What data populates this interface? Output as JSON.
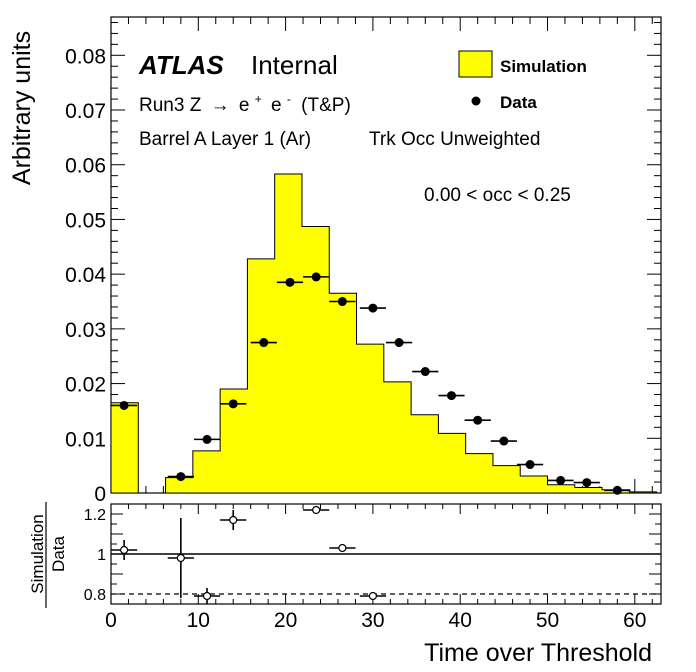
{
  "chart_data": [
    {
      "type": "bar",
      "panel": "main",
      "ylabel": "Arbitrary units",
      "xlim": [
        0,
        63
      ],
      "ylim": [
        0,
        0.087
      ],
      "yticks": [
        "0",
        "0.01",
        "0.02",
        "0.03",
        "0.04",
        "0.05",
        "0.06",
        "0.07",
        "0.08"
      ],
      "ytick_values": [
        0,
        0.01,
        0.02,
        0.03,
        0.04,
        0.05,
        0.06,
        0.07,
        0.08
      ],
      "annotations": {
        "atlas": "ATLAS",
        "internal": "Internal",
        "line1_prefix": "Run3 Z",
        "arrow": "→",
        "line1_e1": "e",
        "line1_sup1": "+",
        "line1_e2": "e",
        "line1_sup2": "-",
        "line1_suffix": "(T&P)",
        "line2a": "Barrel A Layer 1 (Ar)",
        "line2b": "Trk Occ Unweighted",
        "range": "0.00 < occ < 0.25"
      },
      "legend": [
        {
          "label": "Simulation",
          "style": "filled-box",
          "color": "#ffff00"
        },
        {
          "label": "Data",
          "style": "marker"
        }
      ],
      "series": [
        {
          "name": "Simulation",
          "kind": "histogram",
          "color": "#ffff00",
          "bin_edges": [
            0,
            3.125,
            6.25,
            9.375,
            12.5,
            15.625,
            18.75,
            21.875,
            25,
            28.125,
            31.25,
            34.375,
            37.5,
            40.625,
            43.75,
            46.875,
            50,
            53.125,
            56.25,
            59.375,
            62.5
          ],
          "values": [
            0.0165,
            0,
            0.0028,
            0.0077,
            0.019,
            0.0428,
            0.0583,
            0.0487,
            0.0365,
            0.0272,
            0.0203,
            0.0143,
            0.0109,
            0.0072,
            0.005,
            0.0031,
            0.0015,
            0.001,
            0.0006,
            0.0002
          ]
        },
        {
          "name": "Data",
          "kind": "points",
          "x": [
            1.5,
            8,
            11,
            14,
            17.5,
            20.5,
            23.5,
            26.5,
            30,
            33,
            36,
            39,
            42,
            45,
            48,
            51.5,
            54.5,
            58
          ],
          "y": [
            0.016,
            0.003,
            0.0098,
            0.0163,
            0.0275,
            0.0385,
            0.0395,
            0.035,
            0.0338,
            0.0275,
            0.0222,
            0.0178,
            0.0133,
            0.0095,
            0.0052,
            0.0023,
            0.0019,
            0.0005
          ]
        }
      ]
    },
    {
      "type": "scatter",
      "panel": "ratio",
      "ylabel_top": "Simulation",
      "ylabel_bottom": "Data",
      "xlabel": "Time over Threshold",
      "xlim": [
        0,
        63
      ],
      "ylim": [
        0.75,
        1.25
      ],
      "yticks": [
        "0.8",
        "1",
        "1.2"
      ],
      "ytick_values": [
        0.8,
        1.0,
        1.2
      ],
      "xticks": [
        "0",
        "10",
        "20",
        "30",
        "40",
        "50",
        "60"
      ],
      "xtick_values": [
        0,
        10,
        20,
        30,
        40,
        50,
        60
      ],
      "reference_lines": [
        1.0,
        0.8
      ],
      "points": [
        {
          "x": 1.5,
          "y": 1.02,
          "xerr": 1.5,
          "yerr": 0.05
        },
        {
          "x": 8,
          "y": 0.98,
          "xerr": 1.5,
          "yerr": 0.2
        },
        {
          "x": 11,
          "y": 0.79,
          "xerr": 1.5,
          "yerr": 0.04
        },
        {
          "x": 14,
          "y": 1.17,
          "xerr": 1.5,
          "yerr": 0.05
        },
        {
          "x": 23.5,
          "y": 1.22,
          "xerr": 1.5,
          "yerr": 0.02
        },
        {
          "x": 26.5,
          "y": 1.03,
          "xerr": 1.5,
          "yerr": 0.02
        },
        {
          "x": 30,
          "y": 0.79,
          "xerr": 1.5,
          "yerr": 0.02
        }
      ]
    }
  ]
}
